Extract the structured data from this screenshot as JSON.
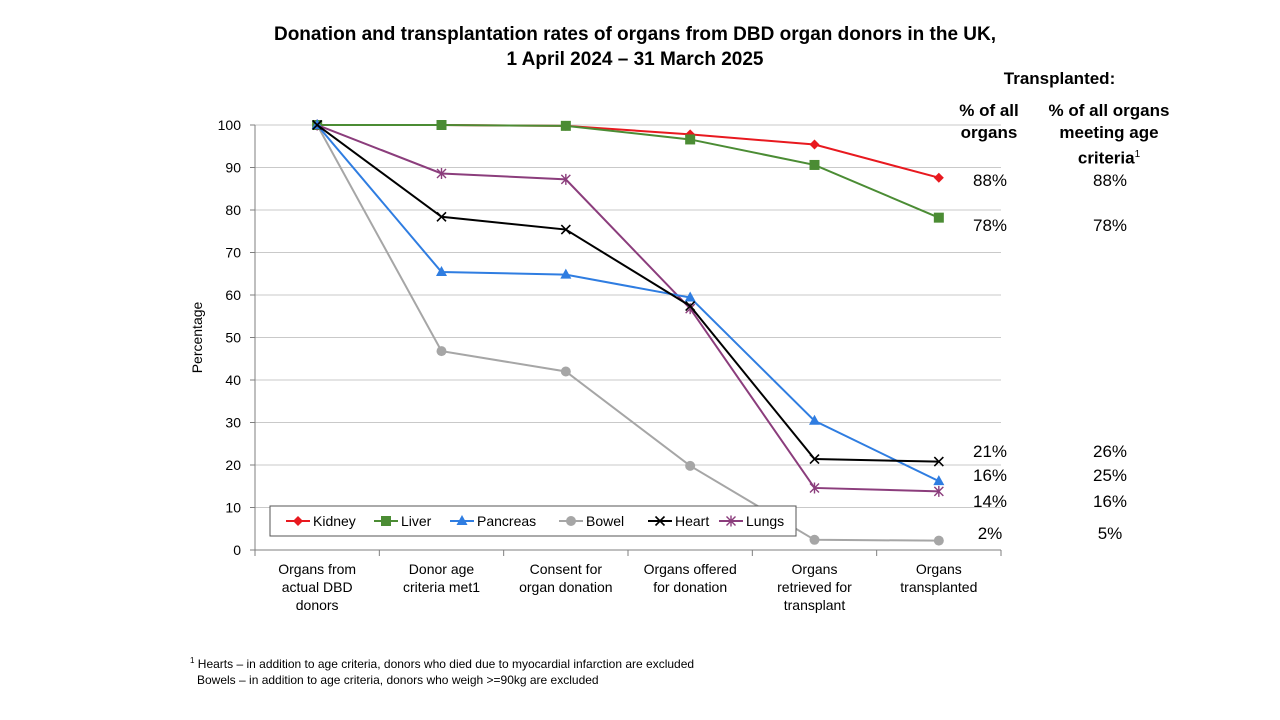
{
  "title_line1": "Donation and transplantation rates of organs from DBD organ donors in the UK,",
  "title_line2": "1 April 2024 – 31 March 2025",
  "right_panel": {
    "heading": "Transplanted:",
    "col1_header": "% of all organs",
    "col2_header": "% of all organs meeting age criteria",
    "col2_footnote_mark": "1",
    "rows": [
      {
        "organ": "Kidney",
        "col1": "88%",
        "col2": "88%"
      },
      {
        "organ": "Liver",
        "col1": "78%",
        "col2": "78%"
      },
      {
        "organ": "Heart",
        "col1": "21%",
        "col2": "26%"
      },
      {
        "organ": "Pancreas",
        "col1": "16%",
        "col2": "25%"
      },
      {
        "organ": "Lungs",
        "col1": "14%",
        "col2": "16%"
      },
      {
        "organ": "Bowel",
        "col1": "2%",
        "col2": "5%"
      }
    ]
  },
  "footnote": {
    "mark": "1",
    "line1": "Hearts – in addition to age criteria, donors who died due to myocardial infarction are excluded",
    "line2": "Bowels – in addition to age criteria, donors who weigh >=90kg are excluded"
  },
  "chart_data": {
    "type": "line",
    "ylabel": "Percentage",
    "xlabel": "",
    "ylim": [
      0,
      100
    ],
    "yticks": [
      0,
      10,
      20,
      30,
      40,
      50,
      60,
      70,
      80,
      90,
      100
    ],
    "grid": true,
    "legend_position": "bottom-left",
    "categories": [
      "Organs from actual DBD donors",
      "Donor age criteria met1",
      "Consent for organ donation",
      "Organs offered for donation",
      "Organs retrieved for transplant",
      "Organs transplanted"
    ],
    "series": [
      {
        "name": "Kidney",
        "color": "#e8191f",
        "marker": "diamond",
        "values": [
          100,
          100,
          99.8,
          97.8,
          95.4,
          87.6
        ]
      },
      {
        "name": "Liver",
        "color": "#4b8c34",
        "marker": "square",
        "values": [
          100,
          100,
          99.8,
          96.6,
          90.6,
          78.2
        ]
      },
      {
        "name": "Pancreas",
        "color": "#2f7de1",
        "marker": "triangle",
        "values": [
          100,
          65.4,
          64.8,
          59.4,
          30.4,
          16.2
        ]
      },
      {
        "name": "Bowel",
        "color": "#a6a6a6",
        "marker": "circle",
        "values": [
          100,
          46.8,
          42,
          19.8,
          2.4,
          2.2
        ]
      },
      {
        "name": "Heart",
        "color": "#000000",
        "marker": "x",
        "values": [
          100,
          78.4,
          75.4,
          57.4,
          21.4,
          20.8
        ]
      },
      {
        "name": "Lungs",
        "color": "#8b3d7c",
        "marker": "star",
        "values": [
          100,
          88.6,
          87.2,
          56.8,
          14.6,
          13.8
        ]
      }
    ]
  }
}
